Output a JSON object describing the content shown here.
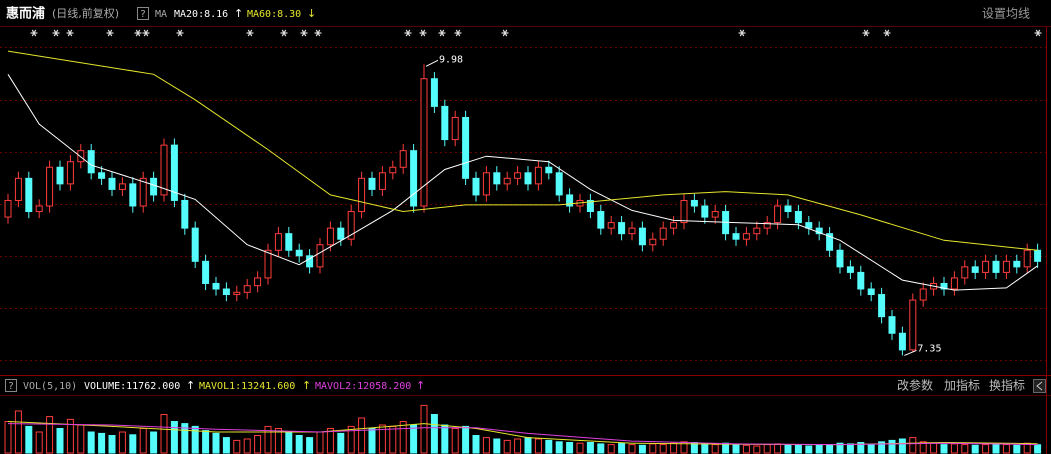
{
  "header": {
    "name": "惠而浦",
    "mode": "(日线,前复权)",
    "help": "?",
    "indicator": "MA",
    "ma20": "MA20:8.16",
    "ma20_arrow": "↑",
    "ma60": "MA60:8.30",
    "ma60_arrow": "↓",
    "settings": "设置均线"
  },
  "volume_header": {
    "help": "?",
    "indicator": "VOL(5,10)",
    "volume": "VOLUME:11762.000",
    "volume_arrow": "↑",
    "mavol1": "MAVOL1:13241.600",
    "mavol1_arrow": "↑",
    "mavol2": "MAVOL2:12058.200",
    "mavol2_arrow": "↑",
    "buttons": [
      "改参数",
      "加指标",
      "换指标"
    ]
  },
  "chart_data": [
    {
      "type": "candlestick",
      "ylim": [
        7.2,
        10.2
      ],
      "up_color": "#ff3c3c",
      "down_color": "#54fcfc",
      "open": [
        8.6,
        8.75,
        8.95,
        8.65,
        8.7,
        9.05,
        8.9,
        9.1,
        9.2,
        9.0,
        8.95,
        8.85,
        8.9,
        8.7,
        8.95,
        8.8,
        9.25,
        8.75,
        8.5,
        8.2,
        8.0,
        7.95,
        7.9,
        7.92,
        7.98,
        8.05,
        8.3,
        8.45,
        8.3,
        8.25,
        8.15,
        8.35,
        8.5,
        8.4,
        8.65,
        8.95,
        8.85,
        9.0,
        9.05,
        9.2,
        8.7,
        9.85,
        9.6,
        9.3,
        9.5,
        8.95,
        8.8,
        9.0,
        8.9,
        8.95,
        9.0,
        8.9,
        9.05,
        9.0,
        8.8,
        8.7,
        8.75,
        8.65,
        8.5,
        8.55,
        8.45,
        8.5,
        8.35,
        8.4,
        8.5,
        8.55,
        8.75,
        8.7,
        8.6,
        8.65,
        8.45,
        8.4,
        8.45,
        8.5,
        8.55,
        8.7,
        8.65,
        8.55,
        8.5,
        8.45,
        8.3,
        8.15,
        8.1,
        7.95,
        7.9,
        7.7,
        7.55,
        7.4,
        7.85,
        7.95,
        8.0,
        7.95,
        8.05,
        8.15,
        8.1,
        8.2,
        8.1,
        8.2,
        8.15,
        8.3
      ],
      "high": [
        8.81,
        9.01,
        9.01,
        8.76,
        9.11,
        9.11,
        9.16,
        9.26,
        9.26,
        9.06,
        9.01,
        8.96,
        8.96,
        9.01,
        9.01,
        9.31,
        9.31,
        8.81,
        8.56,
        8.26,
        8.06,
        8.01,
        7.98,
        8.04,
        8.11,
        8.36,
        8.51,
        8.51,
        8.36,
        8.31,
        8.41,
        8.56,
        8.56,
        8.71,
        9.01,
        9.01,
        9.06,
        9.11,
        9.26,
        9.26,
        9.98,
        9.91,
        9.66,
        9.56,
        9.56,
        9.01,
        9.06,
        9.06,
        9.01,
        9.06,
        9.06,
        9.11,
        9.11,
        9.06,
        8.86,
        8.81,
        8.81,
        8.71,
        8.61,
        8.61,
        8.56,
        8.56,
        8.46,
        8.56,
        8.61,
        8.81,
        8.81,
        8.76,
        8.71,
        8.71,
        8.51,
        8.51,
        8.56,
        8.61,
        8.76,
        8.76,
        8.71,
        8.61,
        8.56,
        8.51,
        8.36,
        8.21,
        8.16,
        8.01,
        7.96,
        7.76,
        7.61,
        7.91,
        8.01,
        8.06,
        8.06,
        8.11,
        8.21,
        8.21,
        8.26,
        8.26,
        8.26,
        8.26,
        8.36,
        8.36
      ],
      "low": [
        8.54,
        8.69,
        8.59,
        8.59,
        8.64,
        8.84,
        8.84,
        9.04,
        8.94,
        8.89,
        8.79,
        8.79,
        8.64,
        8.64,
        8.74,
        8.74,
        8.69,
        8.44,
        8.14,
        7.94,
        7.89,
        7.84,
        7.84,
        7.86,
        7.92,
        7.99,
        8.24,
        8.24,
        8.19,
        8.09,
        8.09,
        8.29,
        8.34,
        8.34,
        8.59,
        8.79,
        8.79,
        8.94,
        8.99,
        8.64,
        8.64,
        9.54,
        9.24,
        9.24,
        8.89,
        8.74,
        8.74,
        8.84,
        8.84,
        8.89,
        8.84,
        8.84,
        8.94,
        8.74,
        8.64,
        8.64,
        8.59,
        8.44,
        8.44,
        8.39,
        8.39,
        8.29,
        8.29,
        8.34,
        8.44,
        8.49,
        8.64,
        8.54,
        8.54,
        8.39,
        8.34,
        8.34,
        8.39,
        8.44,
        8.49,
        8.59,
        8.49,
        8.44,
        8.39,
        8.24,
        8.09,
        8.04,
        7.89,
        7.84,
        7.64,
        7.49,
        7.35,
        7.38,
        7.79,
        7.89,
        7.89,
        7.89,
        7.99,
        8.04,
        8.04,
        8.04,
        8.04,
        8.09,
        8.09,
        8.14
      ],
      "close": [
        8.75,
        8.95,
        8.65,
        8.7,
        9.05,
        8.9,
        9.1,
        9.2,
        9.0,
        8.95,
        8.85,
        8.9,
        8.7,
        8.95,
        8.8,
        9.25,
        8.75,
        8.5,
        8.2,
        8.0,
        7.95,
        7.9,
        7.92,
        7.98,
        8.05,
        8.3,
        8.45,
        8.3,
        8.25,
        8.15,
        8.35,
        8.5,
        8.4,
        8.65,
        8.95,
        8.85,
        9.0,
        9.05,
        9.2,
        8.7,
        9.85,
        9.6,
        9.3,
        9.5,
        8.95,
        8.8,
        9.0,
        8.9,
        8.95,
        9.0,
        8.9,
        9.05,
        9.0,
        8.8,
        8.7,
        8.75,
        8.65,
        8.5,
        8.55,
        8.45,
        8.5,
        8.35,
        8.4,
        8.5,
        8.55,
        8.75,
        8.7,
        8.6,
        8.65,
        8.45,
        8.4,
        8.45,
        8.5,
        8.55,
        8.7,
        8.65,
        8.55,
        8.5,
        8.45,
        8.3,
        8.15,
        8.1,
        7.95,
        7.9,
        7.7,
        7.55,
        7.4,
        7.85,
        7.95,
        8.0,
        7.95,
        8.05,
        8.15,
        8.1,
        8.2,
        8.1,
        8.2,
        8.15,
        8.3,
        8.2
      ],
      "series": [
        {
          "name": "MA20",
          "color": "#ffffff",
          "x": [
            0,
            3,
            8,
            14,
            18,
            23,
            28,
            33,
            37,
            42,
            46,
            52,
            56,
            60,
            64,
            70,
            76,
            80,
            86,
            91,
            96,
            99
          ],
          "values": [
            9.89,
            9.44,
            9.07,
            8.89,
            8.76,
            8.35,
            8.17,
            8.44,
            8.66,
            9.03,
            9.15,
            9.1,
            8.85,
            8.66,
            8.57,
            8.55,
            8.53,
            8.39,
            8.03,
            7.94,
            7.96,
            8.16
          ]
        },
        {
          "name": "MA60",
          "color": "#e6e62c",
          "x": [
            0,
            14,
            18,
            25,
            31,
            38,
            44,
            53,
            63,
            69,
            75,
            82,
            90,
            99
          ],
          "values": [
            10.1,
            9.89,
            9.66,
            9.21,
            8.8,
            8.65,
            8.71,
            8.71,
            8.8,
            8.83,
            8.8,
            8.62,
            8.39,
            8.3
          ]
        }
      ]
    },
    {
      "type": "bar",
      "ylim": [
        0,
        80000
      ],
      "values": [
        45000,
        60000,
        38000,
        30000,
        52000,
        35000,
        48000,
        40000,
        30000,
        28000,
        25000,
        30000,
        26000,
        35000,
        30000,
        55000,
        45000,
        42000,
        38000,
        32000,
        28000,
        22000,
        18000,
        20000,
        25000,
        38000,
        35000,
        30000,
        25000,
        22000,
        30000,
        35000,
        28000,
        38000,
        50000,
        35000,
        40000,
        38000,
        45000,
        40000,
        68000,
        55000,
        40000,
        35000,
        38000,
        25000,
        22000,
        20000,
        18000,
        20000,
        22000,
        20000,
        18000,
        16000,
        15000,
        14000,
        15000,
        13000,
        12000,
        14000,
        12000,
        11000,
        13000,
        12000,
        14000,
        16000,
        15000,
        13000,
        12000,
        14000,
        12000,
        11000,
        10000,
        12000,
        13000,
        12000,
        11000,
        10000,
        11000,
        12000,
        14000,
        13000,
        15000,
        12000,
        16000,
        18000,
        20000,
        22000,
        16000,
        14000,
        12000,
        13000,
        12000,
        11000,
        12000,
        13000,
        12000,
        11000,
        14000,
        11762
      ],
      "series": [
        {
          "name": "MAVOL1",
          "color": "#e6e62c",
          "x": [
            0,
            10,
            20,
            30,
            40,
            45,
            50,
            60,
            70,
            80,
            90,
            99
          ],
          "values": [
            45000,
            38000,
            30000,
            30000,
            42000,
            35000,
            22000,
            14000,
            12500,
            12000,
            15000,
            13241.6
          ]
        },
        {
          "name": "MAVOL2",
          "color": "#e040e0",
          "x": [
            0,
            10,
            20,
            30,
            40,
            45,
            50,
            60,
            70,
            80,
            90,
            99
          ],
          "values": [
            42000,
            40000,
            34000,
            30000,
            36000,
            36000,
            28000,
            17000,
            13000,
            12000,
            14000,
            12058.2
          ]
        }
      ]
    }
  ]
}
